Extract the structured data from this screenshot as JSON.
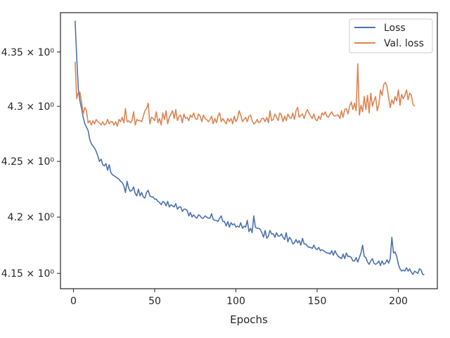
{
  "chart_data": {
    "type": "line",
    "title": "",
    "xlabel": "Epochs",
    "ylabel": "",
    "y_scale": "log",
    "grid": false,
    "legend_position": "top-right",
    "xlim": [
      -8,
      224
    ],
    "ylim": [
      4.1365,
      4.3865
    ],
    "x_ticks": [
      {
        "value": 0,
        "label": "0"
      },
      {
        "value": 50,
        "label": "50"
      },
      {
        "value": 100,
        "label": "100"
      },
      {
        "value": 150,
        "label": "150"
      },
      {
        "value": 200,
        "label": "200"
      }
    ],
    "y_ticks": [
      {
        "value": 4.15,
        "label": "4.15 × 10⁰"
      },
      {
        "value": 4.2,
        "label": "4.2 × 10⁰"
      },
      {
        "value": 4.25,
        "label": "4.25 × 10⁰"
      },
      {
        "value": 4.3,
        "label": "4.3 × 10⁰"
      },
      {
        "value": 4.35,
        "label": "4.35 × 10⁰"
      }
    ],
    "series": [
      {
        "name": "Loss",
        "color": "#4c72b0",
        "x_start": 1,
        "x_step": 1,
        "values": [
          4.379,
          4.345,
          4.316,
          4.305,
          4.298,
          4.29,
          4.284,
          4.281,
          4.278,
          4.27,
          4.266,
          4.264,
          4.262,
          4.259,
          4.255,
          4.25,
          4.252,
          4.247,
          4.246,
          4.248,
          4.242,
          4.247,
          4.24,
          4.238,
          4.237,
          4.236,
          4.235,
          4.234,
          4.232,
          4.231,
          4.228,
          4.222,
          4.232,
          4.226,
          4.223,
          4.224,
          4.227,
          4.221,
          4.219,
          4.225,
          4.219,
          4.222,
          4.218,
          4.217,
          4.222,
          4.224,
          4.219,
          4.218,
          4.218,
          4.216,
          4.216,
          4.214,
          4.213,
          4.211,
          4.214,
          4.213,
          4.21,
          4.214,
          4.209,
          4.211,
          4.21,
          4.209,
          4.212,
          4.207,
          4.209,
          4.209,
          4.205,
          4.207,
          4.207,
          4.206,
          4.201,
          4.204,
          4.2,
          4.202,
          4.2,
          4.199,
          4.202,
          4.201,
          4.199,
          4.199,
          4.201,
          4.2,
          4.199,
          4.199,
          4.203,
          4.198,
          4.197,
          4.197,
          4.196,
          4.199,
          4.201,
          4.196,
          4.196,
          4.192,
          4.196,
          4.191,
          4.195,
          4.193,
          4.194,
          4.191,
          4.192,
          4.191,
          4.195,
          4.19,
          4.192,
          4.191,
          4.197,
          4.187,
          4.19,
          4.186,
          4.201,
          4.191,
          4.19,
          4.19,
          4.189,
          4.186,
          4.182,
          4.188,
          4.181,
          4.183,
          4.188,
          4.185,
          4.185,
          4.182,
          4.186,
          4.183,
          4.183,
          4.185,
          4.182,
          4.18,
          4.186,
          4.178,
          4.182,
          4.18,
          4.176,
          4.177,
          4.18,
          4.177,
          4.179,
          4.175,
          4.181,
          4.176,
          4.176,
          4.174,
          4.173,
          4.173,
          4.172,
          4.175,
          4.172,
          4.171,
          4.173,
          4.17,
          4.171,
          4.17,
          4.169,
          4.168,
          4.168,
          4.167,
          4.17,
          4.166,
          4.17,
          4.167,
          4.165,
          4.164,
          4.163,
          4.167,
          4.163,
          4.168,
          4.165,
          4.165,
          4.164,
          4.161,
          4.161,
          4.164,
          4.16,
          4.164,
          4.168,
          4.175,
          4.165,
          4.164,
          4.16,
          4.158,
          4.161,
          4.163,
          4.159,
          4.158,
          4.159,
          4.161,
          4.157,
          4.161,
          4.158,
          4.159,
          4.162,
          4.159,
          4.163,
          4.182,
          4.168,
          4.169,
          4.165,
          4.158,
          4.154,
          4.152,
          4.153,
          4.152,
          4.155,
          4.152,
          4.154,
          4.151,
          4.149,
          4.152,
          4.151,
          4.15,
          4.154,
          4.153,
          4.149,
          4.149
        ]
      },
      {
        "name": "Val. loss",
        "color": "#dd8452",
        "x_start": 1,
        "x_step": 1,
        "values": [
          4.341,
          4.307,
          4.313,
          4.313,
          4.304,
          4.293,
          4.299,
          4.296,
          4.285,
          4.287,
          4.283,
          4.287,
          4.284,
          4.288,
          4.286,
          4.285,
          4.283,
          4.286,
          4.283,
          4.284,
          4.288,
          4.284,
          4.286,
          4.286,
          4.283,
          4.286,
          4.282,
          4.288,
          4.286,
          4.29,
          4.285,
          4.298,
          4.286,
          4.287,
          4.285,
          4.287,
          4.295,
          4.283,
          4.288,
          4.287,
          4.287,
          4.286,
          4.291,
          4.296,
          4.298,
          4.303,
          4.284,
          4.29,
          4.289,
          4.287,
          4.295,
          4.285,
          4.289,
          4.283,
          4.294,
          4.288,
          4.296,
          4.284,
          4.29,
          4.293,
          4.296,
          4.289,
          4.297,
          4.287,
          4.291,
          4.292,
          4.285,
          4.293,
          4.289,
          4.29,
          4.287,
          4.292,
          4.29,
          4.294,
          4.289,
          4.288,
          4.293,
          4.291,
          4.286,
          4.292,
          4.289,
          4.288,
          4.286,
          4.288,
          4.291,
          4.284,
          4.289,
          4.285,
          4.291,
          4.294,
          4.286,
          4.289,
          4.286,
          4.284,
          4.289,
          4.286,
          4.289,
          4.284,
          4.291,
          4.286,
          4.289,
          4.296,
          4.292,
          4.286,
          4.288,
          4.29,
          4.286,
          4.291,
          4.292,
          4.287,
          4.284,
          4.285,
          4.288,
          4.285,
          4.286,
          4.289,
          4.289,
          4.286,
          4.29,
          4.285,
          4.296,
          4.287,
          4.288,
          4.293,
          4.29,
          4.287,
          4.294,
          4.292,
          4.286,
          4.291,
          4.287,
          4.293,
          4.29,
          4.289,
          4.294,
          4.288,
          4.296,
          4.299,
          4.29,
          4.292,
          4.293,
          4.289,
          4.294,
          4.297,
          4.294,
          4.291,
          4.289,
          4.293,
          4.288,
          4.287,
          4.291,
          4.288,
          4.294,
          4.292,
          4.295,
          4.291,
          4.29,
          4.293,
          4.295,
          4.292,
          4.291,
          4.292,
          4.292,
          4.289,
          4.296,
          4.29,
          4.297,
          4.298,
          4.293,
          4.3,
          4.304,
          4.297,
          4.303,
          4.296,
          4.339,
          4.292,
          4.301,
          4.295,
          4.309,
          4.297,
          4.31,
          4.294,
          4.312,
          4.3,
          4.305,
          4.309,
          4.296,
          4.302,
          4.315,
          4.31,
          4.32,
          4.322,
          4.318,
          4.308,
          4.299,
          4.306,
          4.302,
          4.309,
          4.305,
          4.315,
          4.301,
          4.311,
          4.307,
          4.31,
          4.315,
          4.306,
          4.312,
          4.31,
          4.302,
          4.3
        ]
      }
    ]
  }
}
